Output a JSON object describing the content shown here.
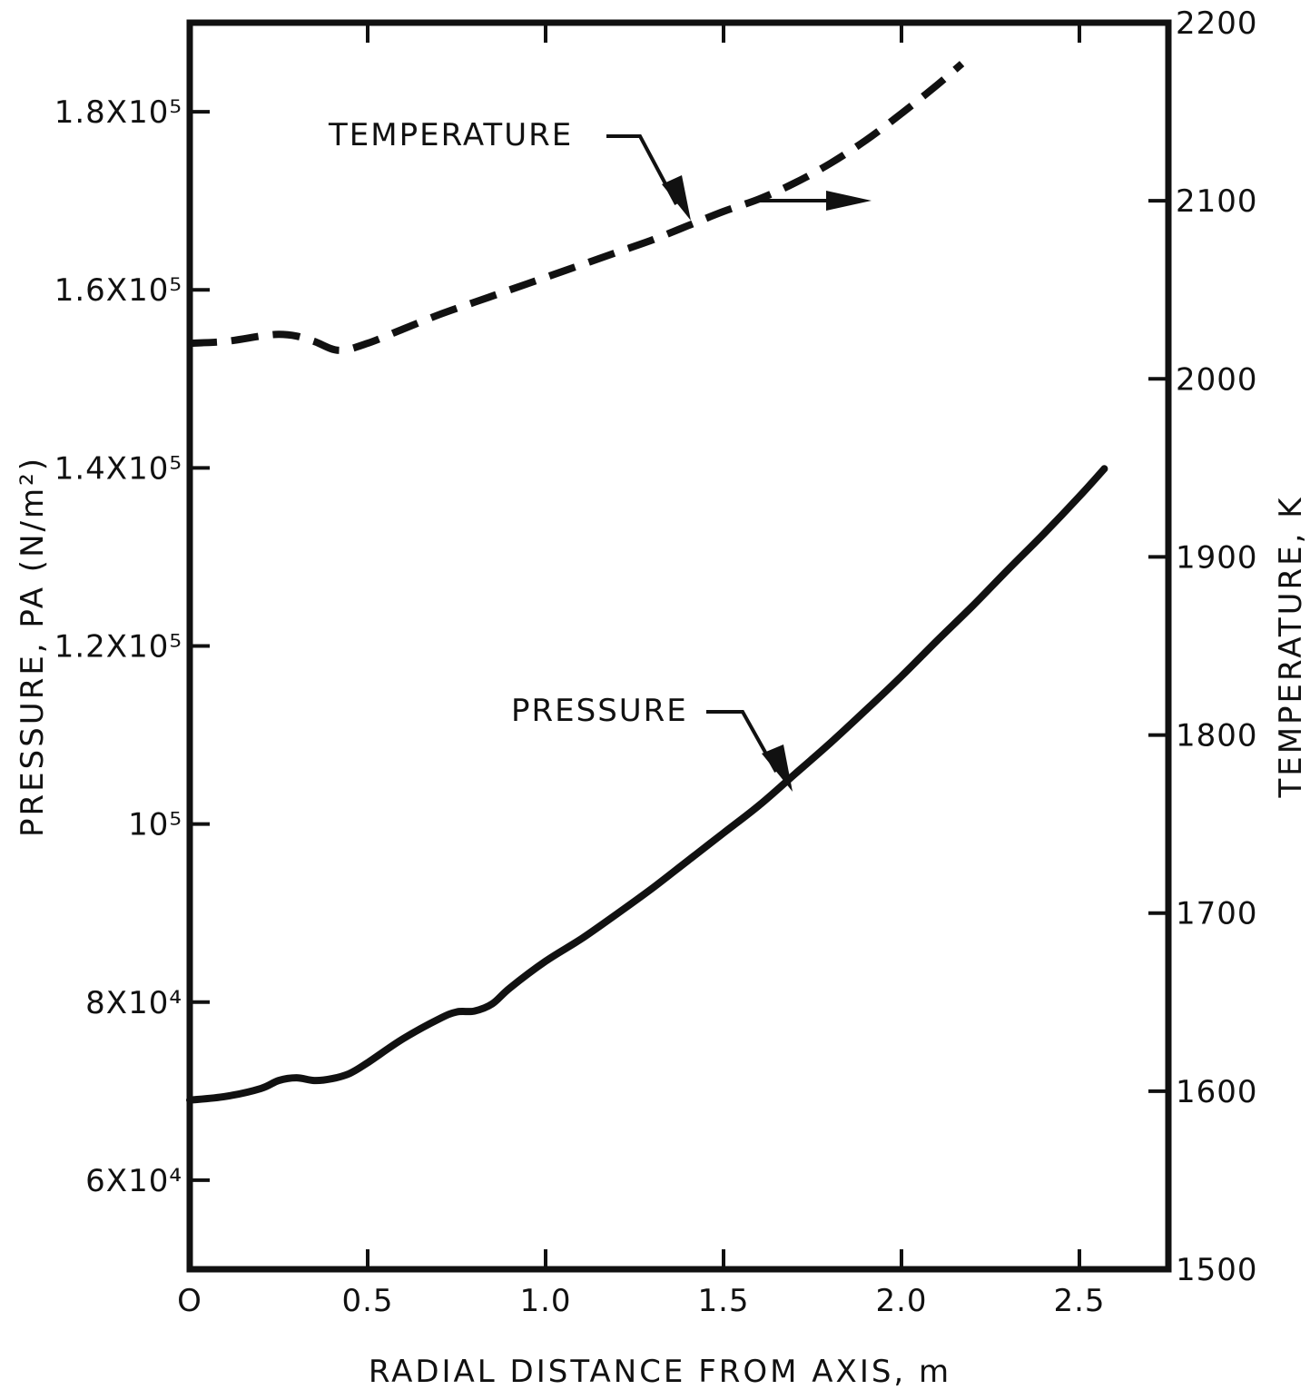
{
  "chart_data": {
    "type": "line",
    "xlabel": "RADIAL DISTANCE FROM AXIS, m",
    "ylabel_left": "PRESSURE, PA (N/m²)",
    "ylabel_right": "TEMPERATURE, K",
    "xlim": [
      0,
      2.75
    ],
    "ylim_left": [
      50000,
      190000
    ],
    "ylim_right": [
      1500,
      2200
    ],
    "x_ticks": [
      {
        "value": 0,
        "label": "O"
      },
      {
        "value": 0.5,
        "label": "0.5"
      },
      {
        "value": 1.0,
        "label": "1.0"
      },
      {
        "value": 1.5,
        "label": "1.5"
      },
      {
        "value": 2.0,
        "label": "2.0"
      },
      {
        "value": 2.5,
        "label": "2.5"
      }
    ],
    "y_ticks_left": [
      {
        "value": 60000,
        "label": "6X10⁴"
      },
      {
        "value": 80000,
        "label": "8X10⁴"
      },
      {
        "value": 100000,
        "label": "10⁵"
      },
      {
        "value": 120000,
        "label": "1.2X10⁵"
      },
      {
        "value": 140000,
        "label": "1.4X10⁵"
      },
      {
        "value": 160000,
        "label": "1.6X10⁵"
      },
      {
        "value": 180000,
        "label": "1.8X10⁵"
      }
    ],
    "y_ticks_right": [
      {
        "value": 1500,
        "label": "1500"
      },
      {
        "value": 1600,
        "label": "1600"
      },
      {
        "value": 1700,
        "label": "1700"
      },
      {
        "value": 1800,
        "label": "1800"
      },
      {
        "value": 1900,
        "label": "1900"
      },
      {
        "value": 2000,
        "label": "2000"
      },
      {
        "value": 2100,
        "label": "2100"
      },
      {
        "value": 2200,
        "label": "2200"
      }
    ],
    "grid": false,
    "series": [
      {
        "name": "PRESSURE",
        "axis": "left",
        "style": "solid",
        "points": [
          [
            0,
            69000
          ],
          [
            0.1,
            69400
          ],
          [
            0.2,
            70300
          ],
          [
            0.25,
            71200
          ],
          [
            0.3,
            71500
          ],
          [
            0.35,
            71200
          ],
          [
            0.4,
            71400
          ],
          [
            0.45,
            72000
          ],
          [
            0.5,
            73200
          ],
          [
            0.6,
            75900
          ],
          [
            0.7,
            78100
          ],
          [
            0.75,
            78900
          ],
          [
            0.8,
            79000
          ],
          [
            0.85,
            79800
          ],
          [
            0.9,
            81600
          ],
          [
            1.0,
            84600
          ],
          [
            1.1,
            87100
          ],
          [
            1.2,
            89900
          ],
          [
            1.3,
            92800
          ],
          [
            1.4,
            95900
          ],
          [
            1.5,
            99000
          ],
          [
            1.6,
            102100
          ],
          [
            1.7,
            105600
          ],
          [
            1.8,
            109100
          ],
          [
            1.9,
            112800
          ],
          [
            2.0,
            116600
          ],
          [
            2.1,
            120600
          ],
          [
            2.2,
            124500
          ],
          [
            2.3,
            128600
          ],
          [
            2.4,
            132600
          ],
          [
            2.5,
            136800
          ],
          [
            2.57,
            139900
          ]
        ]
      },
      {
        "name": "TEMPERATURE",
        "axis": "right",
        "style": "dashed",
        "points": [
          [
            0,
            2020
          ],
          [
            0.1,
            2021
          ],
          [
            0.2,
            2024
          ],
          [
            0.25,
            2025
          ],
          [
            0.3,
            2024
          ],
          [
            0.35,
            2021
          ],
          [
            0.42,
            2016
          ],
          [
            0.5,
            2020
          ],
          [
            0.6,
            2028
          ],
          [
            0.7,
            2036
          ],
          [
            0.8,
            2043
          ],
          [
            0.9,
            2050
          ],
          [
            1.0,
            2057
          ],
          [
            1.1,
            2064
          ],
          [
            1.2,
            2071
          ],
          [
            1.3,
            2078
          ],
          [
            1.4,
            2086
          ],
          [
            1.5,
            2094
          ],
          [
            1.6,
            2101
          ],
          [
            1.7,
            2110
          ],
          [
            1.8,
            2121
          ],
          [
            1.9,
            2134
          ],
          [
            2.0,
            2149
          ],
          [
            2.1,
            2165
          ],
          [
            2.17,
            2177
          ]
        ]
      }
    ],
    "annotations": [
      {
        "text": "TEMPERATURE",
        "target_series": "TEMPERATURE"
      },
      {
        "text": "PRESSURE",
        "target_series": "PRESSURE"
      }
    ]
  }
}
